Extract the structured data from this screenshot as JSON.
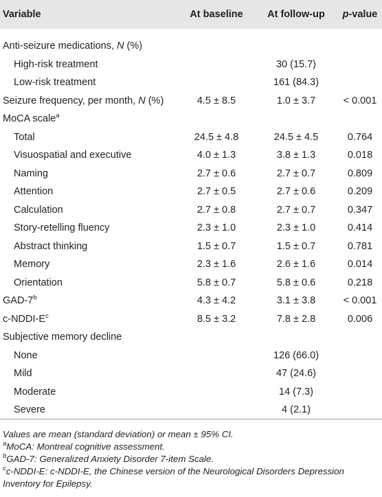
{
  "table": {
    "header": [
      "Variable",
      "At baseline",
      "At follow-up",
      [
        {
          "italic": "p"
        },
        "-value"
      ]
    ],
    "rows": [
      {
        "label": [
          "Anti-seizure medications, ",
          {
            "italic": "N"
          },
          " (%)"
        ],
        "children": [
          {
            "label": "High-risk treatment",
            "followup": "30 (15.7)"
          },
          {
            "label": "Low-risk treatment",
            "followup": "161 (84.3)"
          }
        ]
      },
      {
        "label": [
          "Seizure frequency, per month, ",
          {
            "italic": "N"
          },
          " (%)"
        ],
        "baseline": "4.5 ± 8.5",
        "followup": "1.0 ± 3.7",
        "p": "< 0.001"
      },
      {
        "label": "MoCA scale",
        "sup": "a",
        "children": [
          {
            "label": "Total",
            "baseline": "24.5 ± 4.8",
            "followup": "24.5 ± 4.5",
            "p": "0.764"
          },
          {
            "label": "Visuospatial and executive",
            "baseline": "4.0 ± 1.3",
            "followup": "3.8 ± 1.3",
            "p": "0.018"
          },
          {
            "label": "Naming",
            "baseline": "2.7 ± 0.6",
            "followup": "2.7 ± 0.7",
            "p": "0.809"
          },
          {
            "label": "Attention",
            "baseline": "2.7 ± 0.5",
            "followup": "2.7 ± 0.6",
            "p": "0.209"
          },
          {
            "label": "Calculation",
            "baseline": "2.7 ± 0.8",
            "followup": "2.7 ± 0.7",
            "p": "0.347"
          },
          {
            "label": "Story-retelling fluency",
            "baseline": "2.3 ± 1.0",
            "followup": "2.3 ± 1.0",
            "p": "0.414"
          },
          {
            "label": "Abstract thinking",
            "baseline": "1.5 ± 0.7",
            "followup": "1.5 ± 0.7",
            "p": "0.781"
          },
          {
            "label": "Memory",
            "baseline": "2.3 ± 1.6",
            "followup": "2.6 ± 1.6",
            "p": "0.014"
          },
          {
            "label": "Orientation",
            "baseline": "5.8 ± 0.7",
            "followup": "5.8 ± 0.6",
            "p": "0.218"
          }
        ]
      },
      {
        "label": "GAD-7",
        "sup": "b",
        "baseline": "4.3 ± 4.2",
        "followup": "3.1 ± 3.8",
        "p": "< 0.001"
      },
      {
        "label": "c-NDDI-E",
        "sup": "c",
        "baseline": "8.5 ± 3.2",
        "followup": "7.8 ± 2.8",
        "p": "0.006"
      },
      {
        "label": "Subjective memory decline",
        "children": [
          {
            "label": "None",
            "followup": "126 (66.0)"
          },
          {
            "label": "Mild",
            "followup": "47 (24.6)"
          },
          {
            "label": "Moderate",
            "followup": "14 (7.3)"
          },
          {
            "label": "Severe",
            "followup": "4 (2.1)"
          }
        ]
      }
    ]
  },
  "footnotes": [
    {
      "text": "Values are mean (standard deviation) or mean ± 95% CI."
    },
    {
      "sup": "a",
      "text": "MoCA: Montreal cognitive assessment."
    },
    {
      "sup": "b",
      "text": "GAD-7: Generalized Anxiety Disorder 7-item Scale."
    },
    {
      "sup": "c",
      "text": "c-NDDI-E: c-NDDI-E, the Chinese version of the Neurological Disorders Depression Inventory for Epilepsy."
    }
  ]
}
